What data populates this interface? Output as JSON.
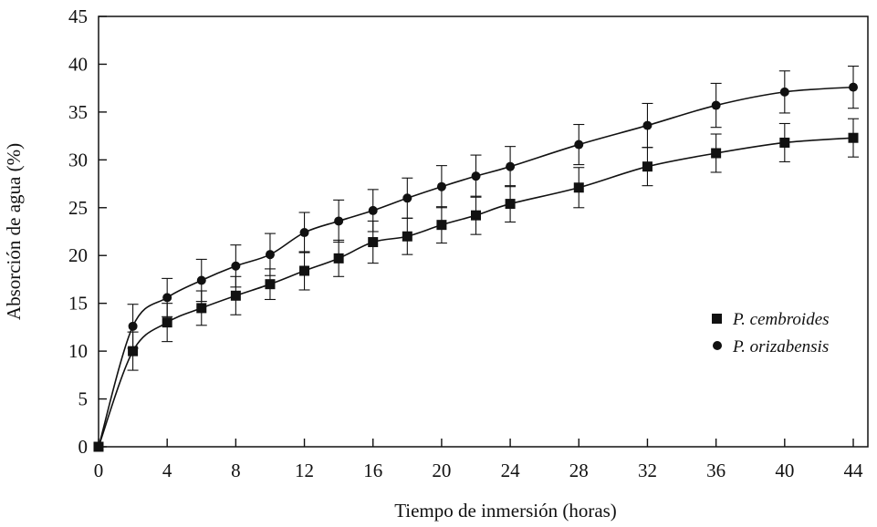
{
  "chart_data": {
    "type": "line",
    "title": "",
    "xlabel": "Tiempo de inmersión (horas)",
    "ylabel": "Absorción de agua (%)",
    "xlim": [
      0,
      44
    ],
    "ylim": [
      0,
      45
    ],
    "xticks": [
      0,
      4,
      8,
      12,
      16,
      20,
      24,
      28,
      32,
      36,
      40,
      44
    ],
    "yticks": [
      0,
      5,
      10,
      15,
      20,
      25,
      30,
      35,
      40,
      45
    ],
    "grid": false,
    "legend_position": "right",
    "series": [
      {
        "name": "P. cembroides",
        "marker": "square",
        "x": [
          0,
          2,
          4,
          6,
          8,
          10,
          12,
          14,
          16,
          18,
          20,
          22,
          24,
          28,
          32,
          36,
          40,
          44
        ],
        "y": [
          0,
          10,
          13,
          14.5,
          15.8,
          17,
          18.4,
          19.7,
          21.4,
          22,
          23.2,
          24.2,
          25.4,
          27.1,
          29.3,
          30.7,
          31.8,
          32.3
        ],
        "err": [
          0,
          2,
          2,
          1.8,
          2,
          1.6,
          2,
          1.9,
          2.2,
          1.9,
          1.9,
          2,
          1.9,
          2.1,
          2,
          2,
          2,
          2
        ]
      },
      {
        "name": "P. orizabensis",
        "marker": "circle",
        "x": [
          0,
          2,
          4,
          6,
          8,
          10,
          12,
          14,
          16,
          18,
          20,
          22,
          24,
          28,
          32,
          36,
          40,
          44
        ],
        "y": [
          0,
          12.6,
          15.6,
          17.4,
          18.9,
          20.1,
          22.4,
          23.6,
          24.7,
          26,
          27.2,
          28.3,
          29.3,
          31.6,
          33.6,
          35.7,
          37.1,
          37.6
        ],
        "err": [
          0,
          2.3,
          2,
          2.2,
          2.2,
          2.2,
          2.1,
          2.2,
          2.2,
          2.1,
          2.2,
          2.2,
          2.1,
          2.1,
          2.3,
          2.3,
          2.2,
          2.2
        ]
      }
    ]
  }
}
